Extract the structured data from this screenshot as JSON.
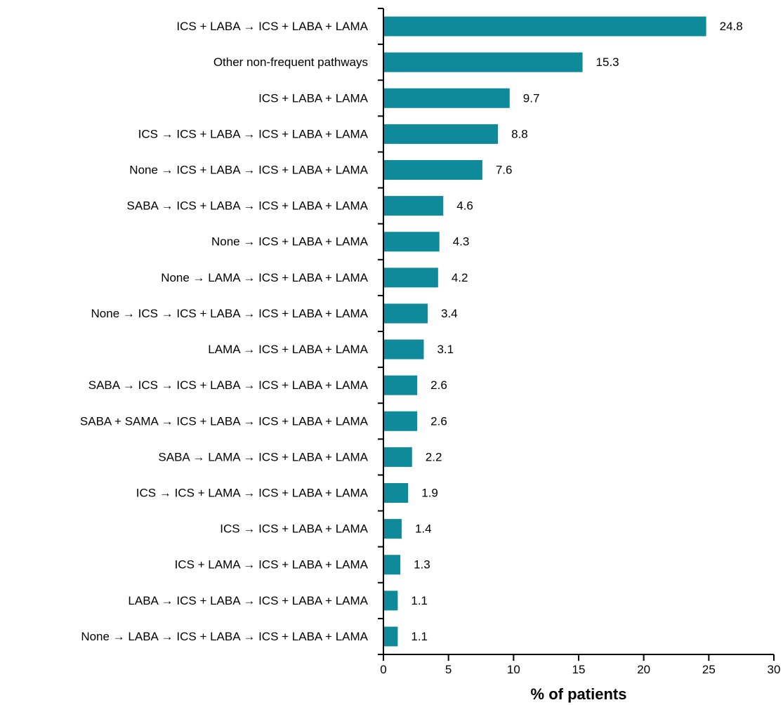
{
  "chart_data": {
    "type": "bar",
    "orientation": "horizontal",
    "categories": [
      "ICS + LABA → ICS + LABA + LAMA",
      "Other non-frequent pathways",
      "ICS + LABA + LAMA",
      "ICS → ICS + LABA → ICS + LABA + LAMA",
      "None → ICS + LABA → ICS + LABA + LAMA",
      "SABA → ICS + LABA → ICS + LABA + LAMA",
      "None → ICS + LABA + LAMA",
      "None → LAMA → ICS + LABA + LAMA",
      "None → ICS → ICS + LABA → ICS + LABA + LAMA",
      "LAMA → ICS + LABA + LAMA",
      "SABA → ICS → ICS + LABA → ICS + LABA + LAMA",
      "SABA + SAMA → ICS + LABA → ICS + LABA + LAMA",
      "SABA → LAMA → ICS + LABA + LAMA",
      "ICS → ICS + LAMA → ICS + LABA + LAMA",
      "ICS → ICS + LABA + LAMA",
      "ICS + LAMA → ICS + LABA + LAMA",
      "LABA → ICS + LABA → ICS + LABA + LAMA",
      "None → LABA → ICS + LABA → ICS + LABA + LAMA"
    ],
    "values": [
      24.8,
      15.3,
      9.7,
      8.8,
      7.6,
      4.6,
      4.3,
      4.2,
      3.4,
      3.1,
      2.6,
      2.6,
      2.2,
      1.9,
      1.4,
      1.3,
      1.1,
      1.1
    ],
    "value_labels": [
      "24.8",
      "15.3",
      "9.7",
      "8.8",
      "7.6",
      "4.6",
      "4.3",
      "4.2",
      "3.4",
      "3.1",
      "2.6",
      "2.6",
      "2.2",
      "1.9",
      "1.4",
      "1.3",
      "1.1",
      "1.1"
    ],
    "xlabel": "% of patients",
    "xlim": [
      0,
      30
    ],
    "xticks": [
      0,
      5,
      10,
      15,
      20,
      25,
      30
    ],
    "grid": false,
    "legend": "none",
    "bar_color": "#0e8a9b",
    "axis_color": "#000000"
  }
}
